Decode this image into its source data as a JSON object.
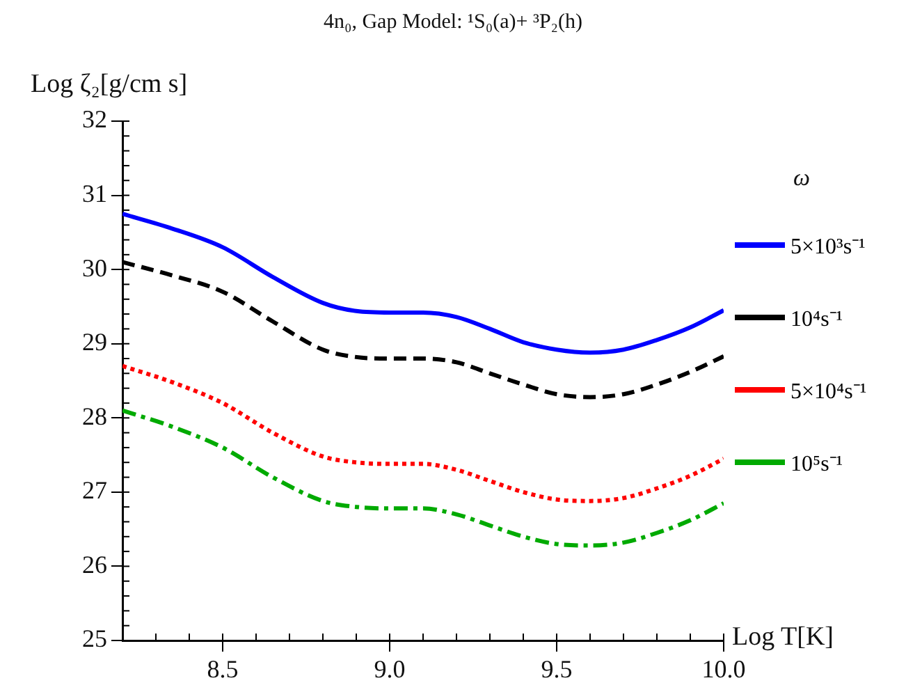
{
  "chart_data": {
    "type": "line",
    "title": "4n₀, Gap Model: ¹S₀(a)+ ³P₂(h)",
    "xlabel": "Log T[K]",
    "ylabel": "Log ζ₂[g/cm s]",
    "legend_title": "ω",
    "legend": "right",
    "grid": false,
    "marker": "none",
    "x": [
      8.2,
      8.35,
      8.5,
      8.65,
      8.8,
      8.9,
      9.0,
      9.1,
      9.2,
      9.3,
      9.4,
      9.5,
      9.6,
      9.7,
      9.8,
      9.9,
      10.0
    ],
    "xlim": [
      8.2,
      10.0
    ],
    "ylim": [
      25,
      32
    ],
    "xticks": [
      8.5,
      {
        "value": 9.0,
        "label": "9.0"
      },
      9.5,
      {
        "value": 10.0,
        "label": "10.0"
      }
    ],
    "yticks": [
      25,
      26,
      27,
      28,
      29,
      30,
      31,
      32
    ],
    "series": [
      {
        "name": "5×10³s⁻¹",
        "color": "#0000ff",
        "line_style": "solid",
        "values": [
          30.75,
          30.55,
          30.3,
          29.9,
          29.55,
          29.44,
          29.42,
          29.42,
          29.36,
          29.2,
          29.02,
          28.92,
          28.88,
          28.92,
          29.05,
          29.22,
          29.45
        ]
      },
      {
        "name": "10⁴s⁻¹",
        "color": "#000000",
        "line_style": "dashed",
        "values": [
          30.1,
          29.92,
          29.7,
          29.3,
          28.92,
          28.82,
          28.8,
          28.8,
          28.75,
          28.6,
          28.45,
          28.32,
          28.28,
          28.32,
          28.45,
          28.62,
          28.83
        ]
      },
      {
        "name": "5×10⁴s⁻¹",
        "color": "#ff0000",
        "line_style": "dotted",
        "values": [
          28.7,
          28.48,
          28.2,
          27.8,
          27.48,
          27.4,
          27.38,
          27.38,
          27.3,
          27.15,
          27.0,
          26.9,
          26.88,
          26.92,
          27.05,
          27.22,
          27.45
        ]
      },
      {
        "name": "10⁵s⁻¹",
        "color": "#00aa00",
        "line_style": "dashdot",
        "values": [
          28.1,
          27.88,
          27.6,
          27.2,
          26.88,
          26.8,
          26.78,
          26.78,
          26.7,
          26.55,
          26.4,
          26.3,
          26.28,
          26.32,
          26.45,
          26.62,
          26.85
        ]
      }
    ]
  }
}
